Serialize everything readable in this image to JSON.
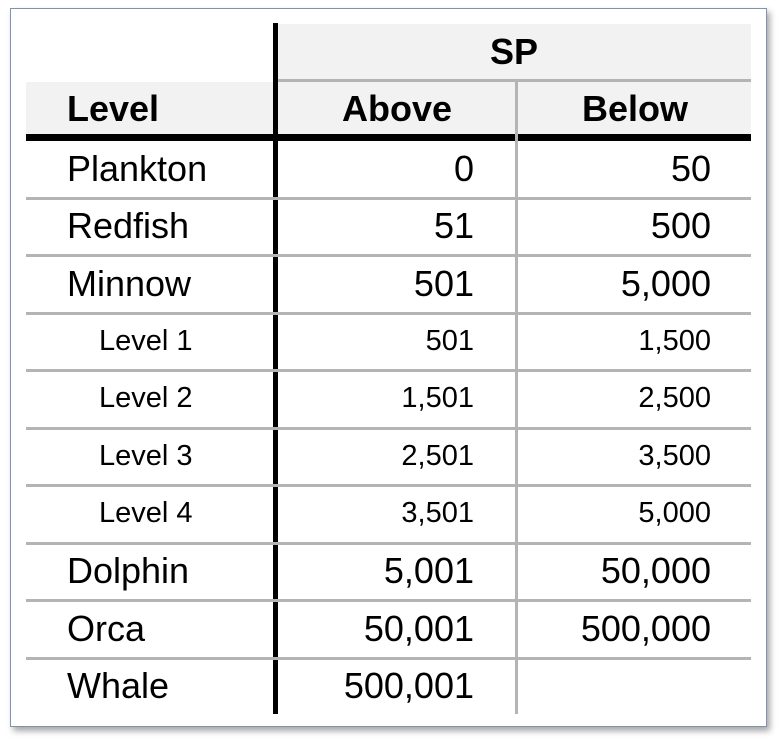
{
  "table": {
    "group_header": "SP",
    "columns": [
      "Level",
      "Above",
      "Below"
    ],
    "rows": [
      {
        "level": "Plankton",
        "above": "0",
        "below": "50",
        "size": "big"
      },
      {
        "level": "Redfish",
        "above": "51",
        "below": "500",
        "size": "big"
      },
      {
        "level": "Minnow",
        "above": "501",
        "below": "5,000",
        "size": "big"
      },
      {
        "level": "Level 1",
        "above": "501",
        "below": "1,500",
        "size": "small"
      },
      {
        "level": "Level 2",
        "above": "1,501",
        "below": "2,500",
        "size": "small"
      },
      {
        "level": "Level 3",
        "above": "2,501",
        "below": "3,500",
        "size": "small"
      },
      {
        "level": "Level 4",
        "above": "3,501",
        "below": "5,000",
        "size": "small"
      },
      {
        "level": "Dolphin",
        "above": "5,001",
        "below": "50,000",
        "size": "big"
      },
      {
        "level": "Orca",
        "above": "50,001",
        "below": "500,000",
        "size": "big"
      },
      {
        "level": "Whale",
        "above": "500,001",
        "below": "",
        "size": "big"
      }
    ]
  }
}
